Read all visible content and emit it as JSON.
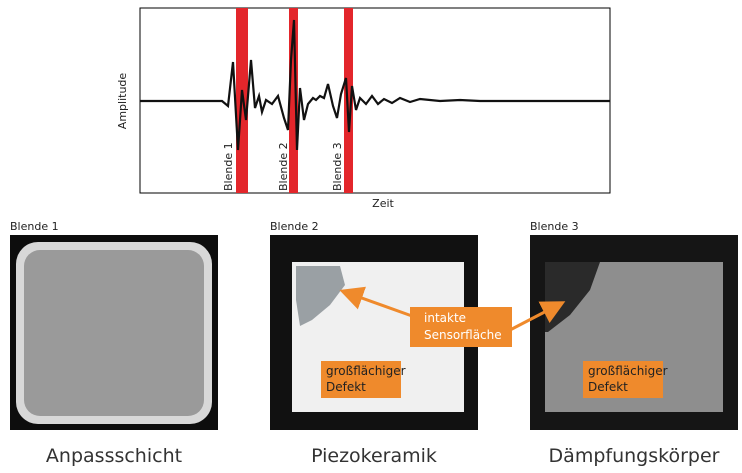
{
  "plot": {
    "y_label": "Amplitude",
    "x_label": "Zeit",
    "gates": [
      "Blende 1",
      "Blende 2",
      "Blende 3"
    ]
  },
  "panels": [
    {
      "label": "Blende 1",
      "caption": "Anpassschicht"
    },
    {
      "label": "Blende 2",
      "caption": "Piezokeramik",
      "annotation": [
        "großflächiger",
        "Defekt"
      ]
    },
    {
      "label": "Blende 3",
      "caption": "Dämpfungskörper",
      "annotation": [
        "großflächiger",
        "Defekt"
      ]
    }
  ],
  "callout": [
    "intakte",
    "Sensorfläche"
  ]
}
